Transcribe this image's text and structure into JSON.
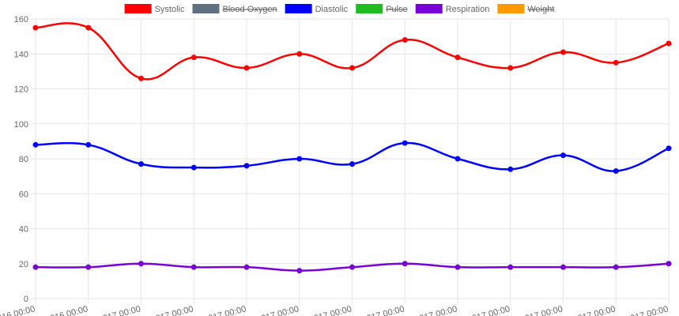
{
  "chart_data": {
    "type": "line",
    "categories": [
      "016 00:00",
      "016 00:00",
      "017 00:00",
      "017 00:00",
      "017 00:00",
      "017 00:00",
      "017 00:00",
      "017 00:00",
      "017 00:00",
      "017 00:00",
      "017 00:00",
      "017 00:00",
      "017 00:00"
    ],
    "series": [
      {
        "name": "Systolic",
        "color": "#ff0000",
        "values": [
          155,
          155,
          126,
          138,
          132,
          140,
          132,
          148,
          138,
          132,
          141,
          135,
          146
        ]
      },
      {
        "name": "Blood Oxygen",
        "color": "#5f7083",
        "hidden": true
      },
      {
        "name": "Diastolic",
        "color": "#0000ff",
        "values": [
          88,
          88,
          77,
          75,
          76,
          80,
          77,
          89,
          80,
          74,
          82,
          73,
          86
        ]
      },
      {
        "name": "Pulse",
        "color": "#22bb22",
        "hidden": true
      },
      {
        "name": "Respiration",
        "color": "#7a00d8",
        "values": [
          18,
          18,
          20,
          18,
          18,
          16,
          18,
          20,
          18,
          18,
          18,
          18,
          20
        ]
      },
      {
        "name": "Weight",
        "color": "#ff9900",
        "hidden": true
      }
    ],
    "ylim": [
      0,
      160
    ],
    "yticks": [
      0,
      20,
      40,
      60,
      80,
      100,
      120,
      140,
      160
    ],
    "grid": true,
    "legend": "top"
  }
}
